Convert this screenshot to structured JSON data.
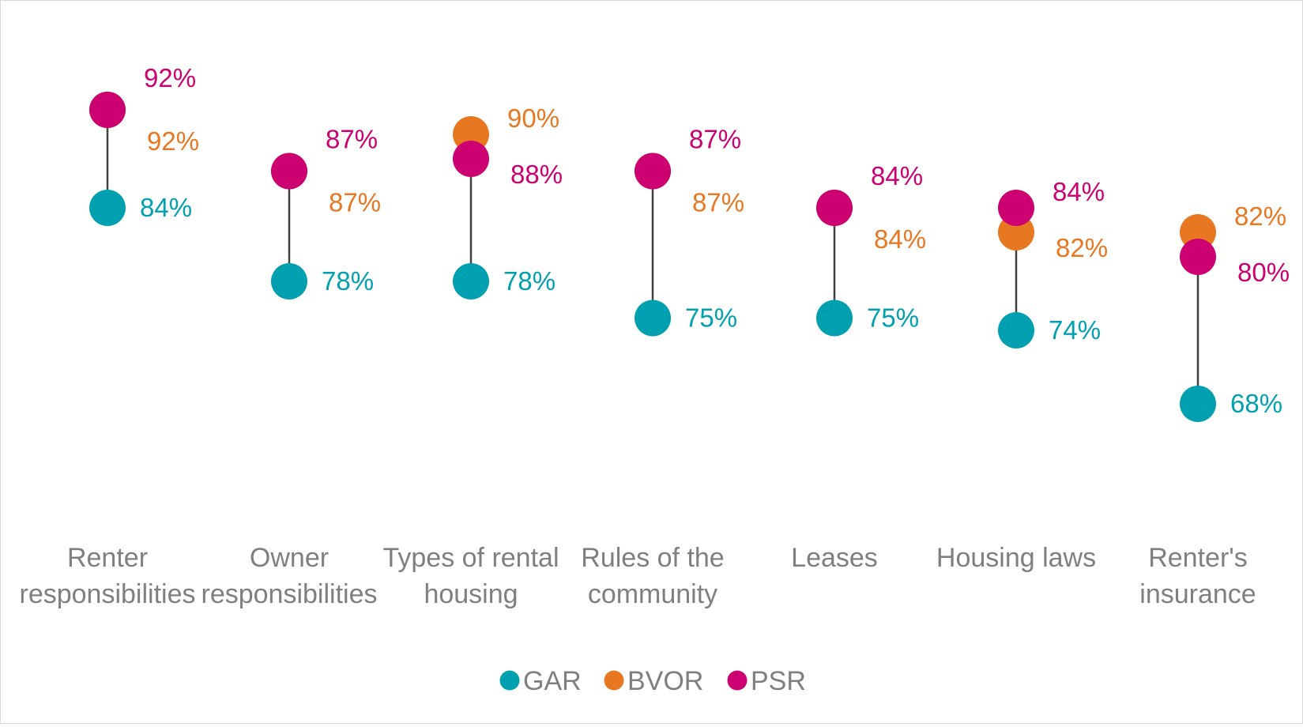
{
  "chart_data": {
    "type": "dumbbell",
    "categories": [
      [
        "Renter",
        "responsibilities"
      ],
      [
        "Owner",
        "responsibilities"
      ],
      [
        "Types of rental",
        "housing"
      ],
      [
        "Rules of the",
        "community"
      ],
      [
        "Leases"
      ],
      [
        "Housing laws"
      ],
      [
        "Renter's",
        "insurance"
      ]
    ],
    "series": [
      {
        "name": "GAR",
        "color": "#00a0b0",
        "values": [
          84,
          78,
          78,
          75,
          75,
          74,
          68
        ],
        "labels": [
          "84%",
          "78%",
          "78%",
          "75%",
          "75%",
          "74%",
          "68%"
        ]
      },
      {
        "name": "BVOR",
        "color": "#e87722",
        "values": [
          92,
          87,
          90,
          87,
          84,
          82,
          82
        ],
        "labels": [
          "92%",
          "87%",
          "90%",
          "87%",
          "84%",
          "82%",
          "82%"
        ]
      },
      {
        "name": "PSR",
        "color": "#cc0070",
        "values": [
          92,
          87,
          88,
          87,
          84,
          84,
          80
        ],
        "labels": [
          "92%",
          "87%",
          "88%",
          "87%",
          "84%",
          "84%",
          "80%"
        ]
      }
    ],
    "connector_color": "#404040",
    "label_order": [
      "PSR",
      "BVOR"
    ],
    "legend_position": "bottom",
    "ylim": [
      64,
      98
    ],
    "grid": false
  }
}
